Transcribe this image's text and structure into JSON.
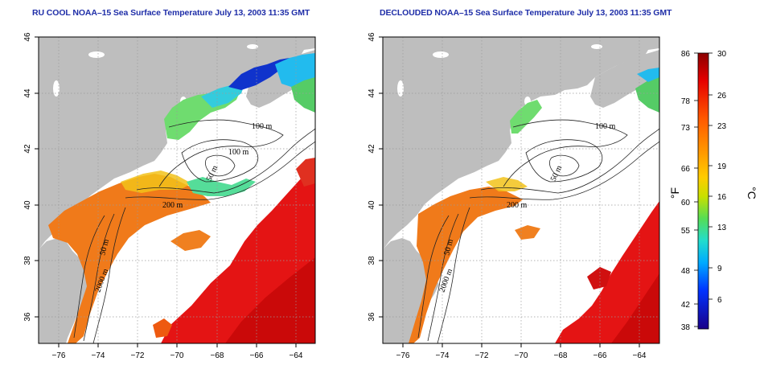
{
  "titles": {
    "left": "RU COOL NOAA–15 Sea Surface Temperature July 13, 2003 11:35 GMT",
    "right": "DECLOUDED NOAA–15 Sea Surface Temperature July 13, 2003 11:35 GMT"
  },
  "axes": {
    "lon_ticks": [
      "−76",
      "−74",
      "−72",
      "−70",
      "−68",
      "−66",
      "−64"
    ],
    "lat_ticks": [
      "46",
      "44",
      "42",
      "40",
      "38",
      "36"
    ]
  },
  "isobath_labels": {
    "left": [
      "100 m",
      "100 m",
      "50 m",
      "200 m",
      "50 m",
      "2000 m"
    ],
    "right": [
      "100 m",
      "50 m",
      "200 m",
      "50 m",
      "2000 m"
    ]
  },
  "colorbar": {
    "fahrenheit_ticks": [
      "86",
      "78",
      "73",
      "66",
      "60",
      "55",
      "48",
      "42",
      "38"
    ],
    "celsius_ticks": [
      "30",
      "26",
      "23",
      "19",
      "16",
      "13",
      "9",
      "6"
    ],
    "unit_f": "°F",
    "unit_c": "°C",
    "colors": [
      "#8b0000",
      "#e60000",
      "#ff5a00",
      "#ff9900",
      "#ffcc00",
      "#c8e000",
      "#55dd55",
      "#22ddcc",
      "#00aaff",
      "#0033ff",
      "#1a0088"
    ]
  },
  "land_color": "#bebebe"
}
